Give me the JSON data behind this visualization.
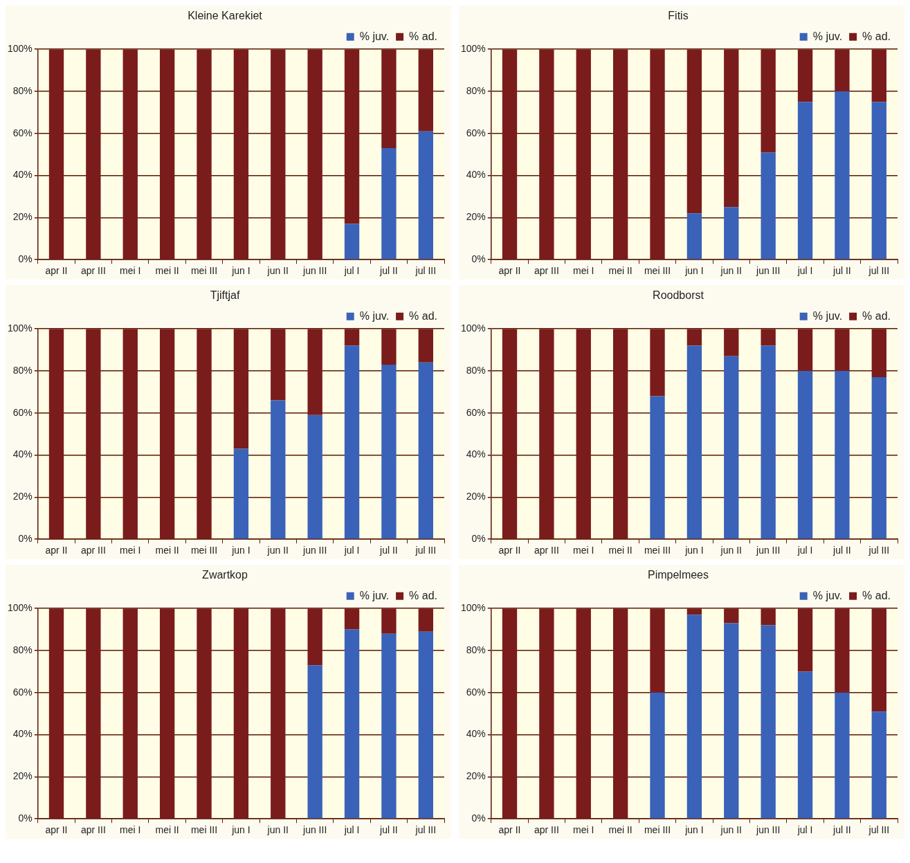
{
  "chart_data": [
    {
      "type": "bar",
      "title": "Kleine Karekiet",
      "stacked": true,
      "grid": "y",
      "legend": "top right",
      "ylim": [
        0,
        100
      ],
      "yticks": [
        {
          "value": 0,
          "label": "0%"
        },
        {
          "value": 20,
          "label": "20%"
        },
        {
          "value": 40,
          "label": "40%"
        },
        {
          "value": 60,
          "label": "60%"
        },
        {
          "value": 80,
          "label": "80%"
        },
        {
          "value": 100,
          "label": "100%"
        }
      ],
      "categories": [
        "apr II",
        "apr III",
        "mei I",
        "mei II",
        "mei III",
        "jun I",
        "jun II",
        "jun III",
        "jul I",
        "jul II",
        "jul III"
      ],
      "series": [
        {
          "name": "% juv.",
          "color": "#3a62b8",
          "values": [
            0,
            0,
            0,
            0,
            0,
            0,
            0,
            0,
            17,
            53,
            61
          ]
        },
        {
          "name": "% ad.",
          "color": "#7a1c1c",
          "values": [
            100,
            100,
            100,
            100,
            100,
            100,
            100,
            100,
            83,
            47,
            39
          ]
        }
      ]
    },
    {
      "type": "bar",
      "title": "Fitis",
      "stacked": true,
      "grid": "y",
      "legend": "top right",
      "ylim": [
        0,
        100
      ],
      "yticks": [
        {
          "value": 0,
          "label": "0%"
        },
        {
          "value": 20,
          "label": "20%"
        },
        {
          "value": 40,
          "label": "40%"
        },
        {
          "value": 60,
          "label": "60%"
        },
        {
          "value": 80,
          "label": "80%"
        },
        {
          "value": 100,
          "label": "100%"
        }
      ],
      "categories": [
        "apr II",
        "apr III",
        "mei I",
        "mei II",
        "mei III",
        "jun I",
        "jun II",
        "jun III",
        "jul I",
        "jul II",
        "jul III"
      ],
      "series": [
        {
          "name": "% juv.",
          "color": "#3a62b8",
          "values": [
            0,
            0,
            0,
            0,
            0,
            22,
            25,
            51,
            75,
            80,
            75
          ]
        },
        {
          "name": "% ad.",
          "color": "#7a1c1c",
          "values": [
            100,
            100,
            100,
            100,
            100,
            78,
            75,
            49,
            25,
            20,
            25
          ]
        }
      ]
    },
    {
      "type": "bar",
      "title": "Tjiftjaf",
      "stacked": true,
      "grid": "y",
      "legend": "top right",
      "ylim": [
        0,
        100
      ],
      "yticks": [
        {
          "value": 0,
          "label": "0%"
        },
        {
          "value": 20,
          "label": "20%"
        },
        {
          "value": 40,
          "label": "40%"
        },
        {
          "value": 60,
          "label": "60%"
        },
        {
          "value": 80,
          "label": "80%"
        },
        {
          "value": 100,
          "label": "100%"
        }
      ],
      "categories": [
        "apr II",
        "apr III",
        "mei I",
        "mei II",
        "mei III",
        "jun I",
        "jun II",
        "jun III",
        "jul I",
        "jul II",
        "jul III"
      ],
      "series": [
        {
          "name": "% juv.",
          "color": "#3a62b8",
          "values": [
            0,
            0,
            0,
            0,
            0,
            43,
            66,
            59,
            92,
            83,
            84
          ]
        },
        {
          "name": "% ad.",
          "color": "#7a1c1c",
          "values": [
            100,
            100,
            100,
            100,
            100,
            57,
            34,
            41,
            8,
            17,
            16
          ]
        }
      ]
    },
    {
      "type": "bar",
      "title": "Roodborst",
      "stacked": true,
      "grid": "y",
      "legend": "top right",
      "ylim": [
        0,
        100
      ],
      "yticks": [
        {
          "value": 0,
          "label": "0%"
        },
        {
          "value": 20,
          "label": "20%"
        },
        {
          "value": 40,
          "label": "40%"
        },
        {
          "value": 60,
          "label": "60%"
        },
        {
          "value": 80,
          "label": "80%"
        },
        {
          "value": 100,
          "label": "100%"
        }
      ],
      "categories": [
        "apr II",
        "apr III",
        "mei I",
        "mei II",
        "mei III",
        "jun I",
        "jun II",
        "jun III",
        "jul I",
        "jul II",
        "jul III"
      ],
      "series": [
        {
          "name": "% juv.",
          "color": "#3a62b8",
          "values": [
            0,
            0,
            0,
            0,
            68,
            92,
            87,
            92,
            80,
            80,
            77
          ]
        },
        {
          "name": "% ad.",
          "color": "#7a1c1c",
          "values": [
            100,
            100,
            100,
            100,
            32,
            8,
            13,
            8,
            20,
            20,
            23
          ]
        }
      ]
    },
    {
      "type": "bar",
      "title": "Zwartkop",
      "stacked": true,
      "grid": "y",
      "legend": "top right",
      "ylim": [
        0,
        100
      ],
      "yticks": [
        {
          "value": 0,
          "label": "0%"
        },
        {
          "value": 20,
          "label": "20%"
        },
        {
          "value": 40,
          "label": "40%"
        },
        {
          "value": 60,
          "label": "60%"
        },
        {
          "value": 80,
          "label": "80%"
        },
        {
          "value": 100,
          "label": "100%"
        }
      ],
      "categories": [
        "apr II",
        "apr III",
        "mei I",
        "mei II",
        "mei III",
        "jun I",
        "jun II",
        "jun III",
        "jul I",
        "jul II",
        "jul III"
      ],
      "series": [
        {
          "name": "% juv.",
          "color": "#3a62b8",
          "values": [
            0,
            0,
            0,
            0,
            0,
            0,
            0,
            73,
            90,
            88,
            89
          ]
        },
        {
          "name": "% ad.",
          "color": "#7a1c1c",
          "values": [
            100,
            100,
            100,
            100,
            100,
            100,
            100,
            27,
            10,
            12,
            11
          ]
        }
      ]
    },
    {
      "type": "bar",
      "title": "Pimpelmees",
      "stacked": true,
      "grid": "y",
      "legend": "top right",
      "ylim": [
        0,
        100
      ],
      "yticks": [
        {
          "value": 0,
          "label": "0%"
        },
        {
          "value": 20,
          "label": "20%"
        },
        {
          "value": 40,
          "label": "40%"
        },
        {
          "value": 60,
          "label": "60%"
        },
        {
          "value": 80,
          "label": "80%"
        },
        {
          "value": 100,
          "label": "100%"
        }
      ],
      "categories": [
        "apr II",
        "apr III",
        "mei I",
        "mei II",
        "mei III",
        "jun I",
        "jun II",
        "jun III",
        "jul I",
        "jul II",
        "jul III"
      ],
      "series": [
        {
          "name": "% juv.",
          "color": "#3a62b8",
          "values": [
            0,
            0,
            0,
            0,
            60,
            97,
            93,
            92,
            70,
            60,
            51
          ]
        },
        {
          "name": "% ad.",
          "color": "#7a1c1c",
          "values": [
            100,
            100,
            100,
            100,
            40,
            3,
            7,
            8,
            30,
            40,
            49
          ]
        }
      ]
    }
  ]
}
